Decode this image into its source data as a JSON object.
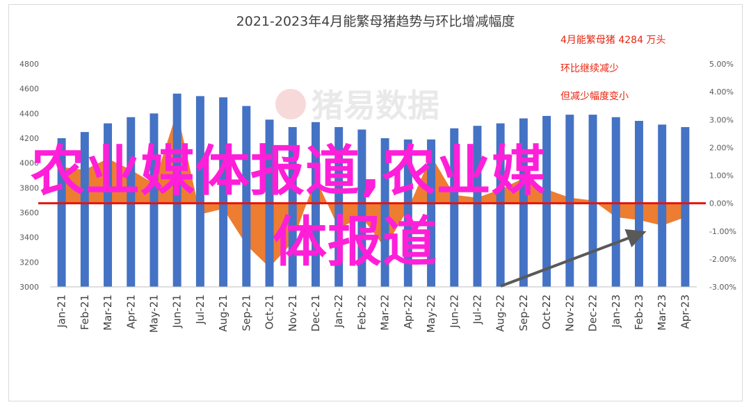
{
  "chart_data": {
    "type": "bar",
    "title": "2021-2023年4月能繁母猪趋势与环比增减幅度",
    "categories": [
      "Jan-21",
      "Feb-21",
      "Mar-21",
      "Apr-21",
      "May-21",
      "Jun-21",
      "Jul-21",
      "Aug-21",
      "Sep-21",
      "Oct-21",
      "Nov-21",
      "Dec-21",
      "Jan-22",
      "Feb-22",
      "Mar-22",
      "Apr-22",
      "May-22",
      "Jun-22",
      "Jul-22",
      "Aug-22",
      "Sep-22",
      "Oct-22",
      "Nov-22",
      "Dec-22",
      "Jan-23",
      "Feb-23",
      "Mar-23",
      "Apr-23"
    ],
    "series": [
      {
        "type": "bar",
        "axis": "left",
        "color": "#4472c4",
        "values": [
          4200,
          4250,
          4320,
          4370,
          4400,
          4560,
          4540,
          4530,
          4460,
          4350,
          4290,
          4330,
          4290,
          4270,
          4200,
          4190,
          4190,
          4280,
          4300,
          4320,
          4360,
          4380,
          4390,
          4390,
          4370,
          4340,
          4310,
          4290
        ]
      },
      {
        "type": "area",
        "axis": "right",
        "color": "#ed7d31",
        "values": [
          1.3,
          1.2,
          1.6,
          1.2,
          0.7,
          3.3,
          -0.4,
          -0.2,
          -1.5,
          -2.3,
          -1.4,
          0.9,
          -0.9,
          -0.5,
          -1.6,
          -0.2,
          1.7,
          0.3,
          0.2,
          0.5,
          0.9,
          0.5,
          0.2,
          0.1,
          -0.5,
          -0.6,
          -0.8,
          -0.5
        ]
      }
    ],
    "y_left_ticks": [
      "4800",
      "4600",
      "4400",
      "4200",
      "4000",
      "3800",
      "3600",
      "3400",
      "3200",
      "3000"
    ],
    "y_right_ticks": [
      "5.00%",
      "4.00%",
      "3.00%",
      "2.00%",
      "1.00%",
      "0.00%",
      "-1.00%",
      "-2.00%",
      "-3.00%"
    ],
    "ylim_left": [
      3000,
      4800
    ],
    "ylim_right": [
      -3,
      5
    ],
    "annotations": [
      "4月能繁母猪 4284 万头",
      "环比继续减少",
      "但减少幅度变小"
    ],
    "annotation_color": "#e8240f",
    "zero_line_color": "#e8120c",
    "grid": false
  },
  "watermark": "猪易数据",
  "overlay": {
    "line1": "农业媒体报道,农业媒",
    "line2": "体报道",
    "color": "#ff1fd8"
  }
}
